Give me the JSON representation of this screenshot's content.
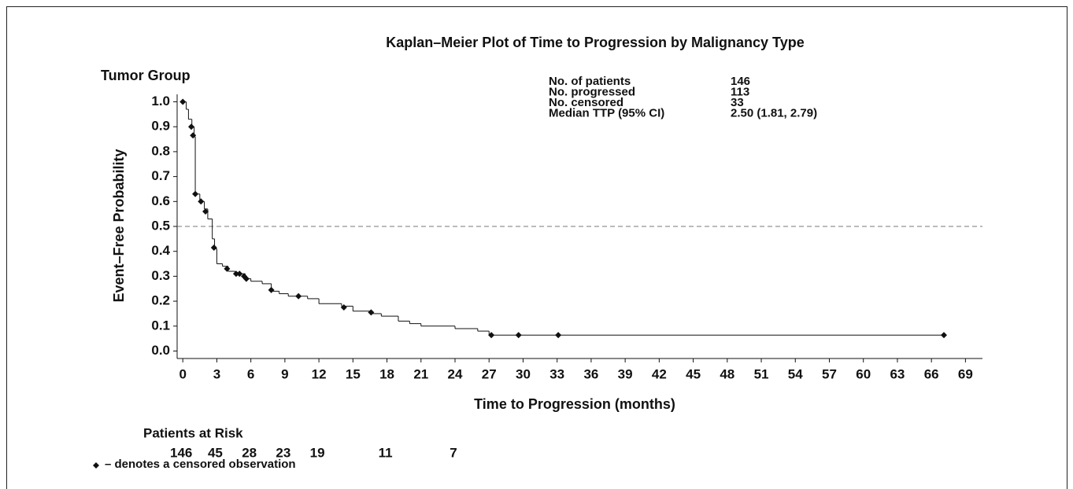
{
  "chart_data": {
    "type": "km-step",
    "title": "Kaplan–Meier Plot of Time to Progression by Malignancy Type",
    "group_label": "Tumor Group",
    "x_label": "Time to Progression (months)",
    "y_label": "Event–Free Probability",
    "x": [
      0,
      0.3,
      0.5,
      0.8,
      1.0,
      1.1,
      1.5,
      1.9,
      2.2,
      2.6,
      2.8,
      3.0,
      3.5,
      4.0,
      4.6,
      5.5,
      6.0,
      7.0,
      7.8,
      8.5,
      9.3,
      11.0,
      12.0,
      14.0,
      15.0,
      16.5,
      17.5,
      19.0,
      20.0,
      21.0,
      24.0,
      26.0,
      27.0,
      67.1
    ],
    "values": [
      1.0,
      0.97,
      0.93,
      0.9,
      0.86,
      0.63,
      0.6,
      0.57,
      0.53,
      0.45,
      0.41,
      0.35,
      0.34,
      0.32,
      0.31,
      0.29,
      0.28,
      0.27,
      0.24,
      0.23,
      0.22,
      0.21,
      0.19,
      0.18,
      0.16,
      0.15,
      0.14,
      0.12,
      0.11,
      0.1,
      0.09,
      0.08,
      0.064,
      0.064
    ],
    "color": "#111111",
    "censored": {
      "x": [
        0,
        0.75,
        0.9,
        1.1,
        1.6,
        2.0,
        2.75,
        3.9,
        4.7,
        5.0,
        5.4,
        5.6,
        7.8,
        10.2,
        14.2,
        16.6,
        27.2,
        29.6,
        33.1,
        67.1
      ],
      "values": [
        1.0,
        0.9,
        0.865,
        0.63,
        0.6,
        0.56,
        0.415,
        0.33,
        0.31,
        0.31,
        0.3,
        0.29,
        0.245,
        0.22,
        0.175,
        0.155,
        0.064,
        0.064,
        0.064,
        0.064
      ]
    },
    "reference_line": 0.5,
    "xlim": [
      -0.5,
      70.5
    ],
    "ylim": [
      -0.03,
      1.03
    ],
    "xticks": [
      0,
      3,
      6,
      9,
      12,
      15,
      18,
      21,
      24,
      27,
      30,
      33,
      36,
      39,
      42,
      45,
      48,
      51,
      54,
      57,
      60,
      63,
      66,
      69
    ],
    "yticks": [
      {
        "value": 0,
        "label": "0.0"
      },
      0.1,
      0.2,
      0.3,
      0.4,
      {
        "value": 0.5,
        "label": "0.5"
      },
      0.6,
      0.7,
      0.8,
      0.9,
      {
        "value": 1,
        "label": "1.0"
      }
    ],
    "stats": [
      [
        "No. of patients",
        "146"
      ],
      [
        "No. progressed",
        "113"
      ],
      [
        "No. censored",
        "33"
      ],
      [
        "Median TTP (95% CI)",
        "2.50 (1.81, 2.79)"
      ]
    ],
    "risk": {
      "label": "Patients at Risk",
      "x": [
        0,
        3,
        6,
        9,
        12,
        18,
        24
      ],
      "counts": [
        146,
        45,
        28,
        23,
        19,
        11,
        7
      ]
    },
    "footnote": "– denotes a censored observation"
  }
}
